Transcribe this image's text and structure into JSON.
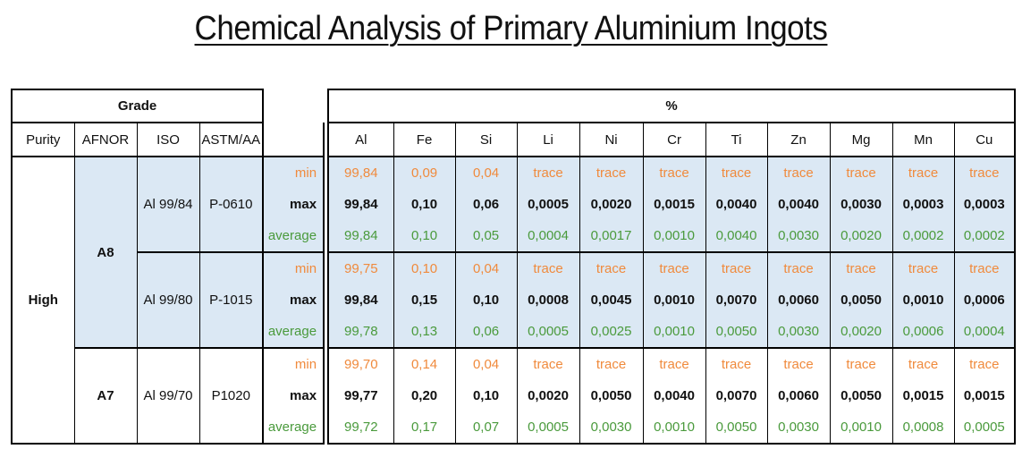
{
  "title": "Chemical Analysis of Primary Aluminium Ingots",
  "header": {
    "grade": "Grade",
    "percent": "%",
    "columns": [
      "Purity",
      "AFNOR",
      "ISO",
      "ASTM/AA"
    ],
    "elements": [
      "Al",
      "Fe",
      "Si",
      "Li",
      "Ni",
      "Cr",
      "Ti",
      "Zn",
      "Mg",
      "Mn",
      "Cu"
    ]
  },
  "purity": "High",
  "afnor": [
    "A8",
    "A7"
  ],
  "groups": [
    {
      "iso": "Al 99/84",
      "astm": "P-0610",
      "rows": [
        {
          "label": "min",
          "values": [
            "99,84",
            "0,09",
            "0,04",
            "trace",
            "trace",
            "trace",
            "trace",
            "trace",
            "trace",
            "trace",
            "trace"
          ]
        },
        {
          "label": "max",
          "values": [
            "99,84",
            "0,10",
            "0,06",
            "0,0005",
            "0,0020",
            "0,0015",
            "0,0040",
            "0,0040",
            "0,0030",
            "0,0003",
            "0,0003"
          ]
        },
        {
          "label": "average",
          "values": [
            "99,84",
            "0,10",
            "0,05",
            "0,0004",
            "0,0017",
            "0,0010",
            "0,0040",
            "0,0030",
            "0,0020",
            "0,0002",
            "0,0002"
          ]
        }
      ]
    },
    {
      "iso": "Al 99/80",
      "astm": "P-1015",
      "rows": [
        {
          "label": "min",
          "values": [
            "99,75",
            "0,10",
            "0,04",
            "trace",
            "trace",
            "trace",
            "trace",
            "trace",
            "trace",
            "trace",
            "trace"
          ]
        },
        {
          "label": "max",
          "values": [
            "99,84",
            "0,15",
            "0,10",
            "0,0008",
            "0,0045",
            "0,0010",
            "0,0070",
            "0,0060",
            "0,0050",
            "0,0010",
            "0,0006"
          ]
        },
        {
          "label": "average",
          "values": [
            "99,78",
            "0,13",
            "0,06",
            "0,0005",
            "0,0025",
            "0,0010",
            "0,0050",
            "0,0030",
            "0,0020",
            "0,0006",
            "0,0004"
          ]
        }
      ]
    },
    {
      "iso": "Al 99/70",
      "astm": "P1020",
      "rows": [
        {
          "label": "min",
          "values": [
            "99,70",
            "0,14",
            "0,04",
            "trace",
            "trace",
            "trace",
            "trace",
            "trace",
            "trace",
            "trace",
            "trace"
          ]
        },
        {
          "label": "max",
          "values": [
            "99,77",
            "0,20",
            "0,10",
            "0,0020",
            "0,0050",
            "0,0040",
            "0,0070",
            "0,0060",
            "0,0050",
            "0,0015",
            "0,0015"
          ]
        },
        {
          "label": "average",
          "values": [
            "99,72",
            "0,17",
            "0,07",
            "0,0005",
            "0,0030",
            "0,0010",
            "0,0050",
            "0,0030",
            "0,0010",
            "0,0008",
            "0,0005"
          ]
        }
      ]
    }
  ]
}
